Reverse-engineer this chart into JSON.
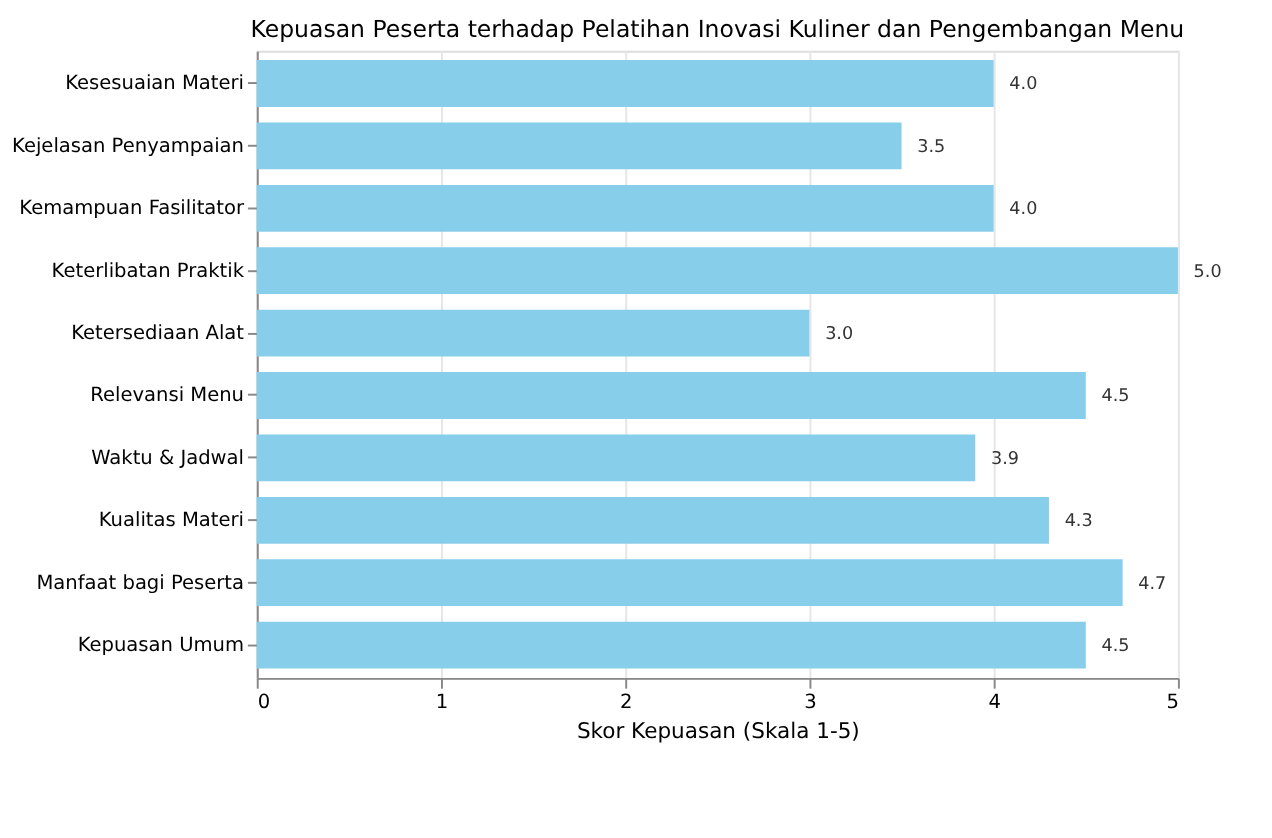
{
  "chart_data": {
    "type": "bar",
    "orientation": "horizontal",
    "title": "Kepuasan Peserta terhadap Pelatihan Inovasi Kuliner dan Pengembangan Menu",
    "xlabel": "Skor Kepuasan (Skala 1-5)",
    "categories": [
      "Kesesuaian Materi",
      "Kejelasan Penyampaian",
      "Kemampuan Fasilitator",
      "Keterlibatan Praktik",
      "Ketersediaan Alat",
      "Relevansi Menu",
      "Waktu & Jadwal",
      "Kualitas Materi",
      "Manfaat bagi Peserta",
      "Kepuasan Umum"
    ],
    "values": [
      4.0,
      3.5,
      4.0,
      5.0,
      3.0,
      4.5,
      3.9,
      4.3,
      4.7,
      4.5
    ],
    "value_labels": [
      "4.0",
      "3.5",
      "4.0",
      "5.0",
      "3.0",
      "4.5",
      "3.9",
      "4.3",
      "4.7",
      "4.5"
    ],
    "color": "#87ceeb",
    "xlim": [
      0,
      5
    ],
    "xticks": [
      0,
      1,
      2,
      3,
      4,
      5
    ],
    "grid": "x"
  }
}
